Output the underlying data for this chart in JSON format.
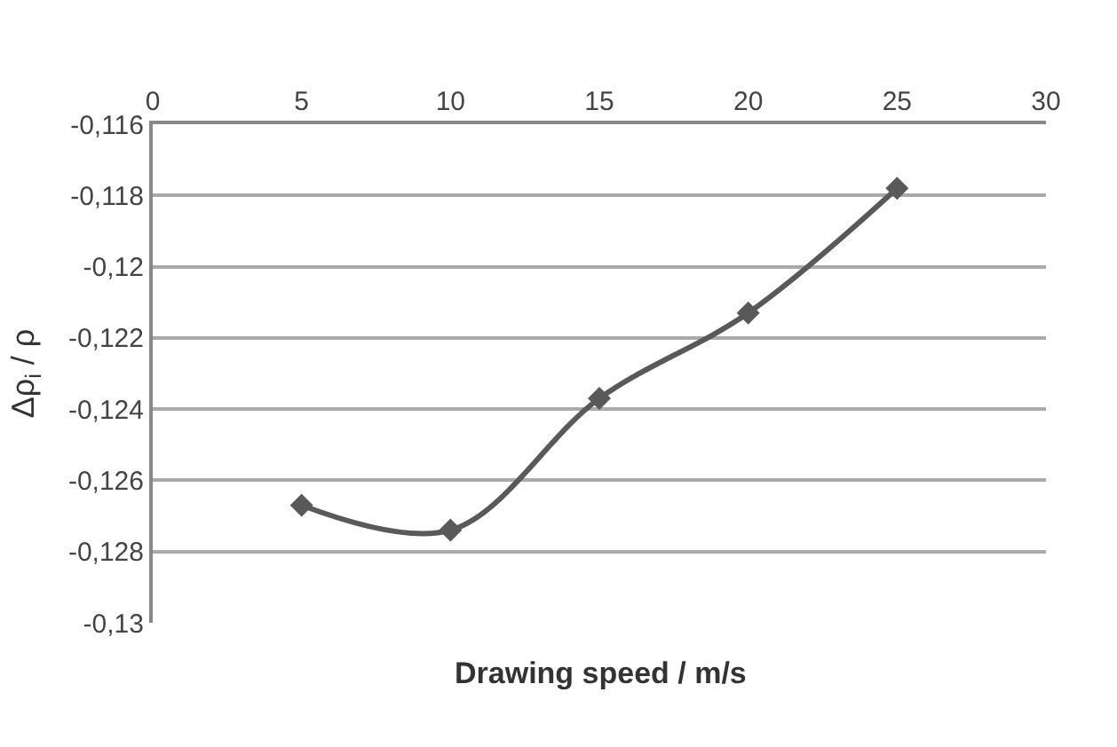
{
  "chart_data": {
    "type": "line",
    "xlabel": "Drawing speed / m/s",
    "ylabel": "Δρ$_{i}$ / ρ",
    "x": [
      5,
      10,
      15,
      20,
      25
    ],
    "series": [
      {
        "color": "#595959",
        "values": [
          -0.1267,
          -0.1274,
          -0.1237,
          -0.1213,
          -0.1178
        ]
      }
    ],
    "xlim": [
      0,
      30
    ],
    "xticks": [
      0,
      5,
      10,
      15,
      20,
      25,
      30
    ],
    "ylim": [
      -0.13,
      -0.116
    ],
    "yticks": [
      {
        "value": -0.13,
        "label": "-0,13"
      },
      {
        "value": -0.128,
        "label": "-0,128"
      },
      {
        "value": -0.126,
        "label": "-0,126"
      },
      {
        "value": -0.124,
        "label": "-0,124"
      },
      {
        "value": -0.122,
        "label": "-0,122"
      },
      {
        "value": -0.12,
        "label": "-0,12"
      },
      {
        "value": -0.118,
        "label": "-0,118"
      },
      {
        "value": -0.116,
        "label": "-0,116"
      }
    ],
    "grid": "y",
    "marker": "diamond",
    "line_style": "solid",
    "legend": false
  }
}
